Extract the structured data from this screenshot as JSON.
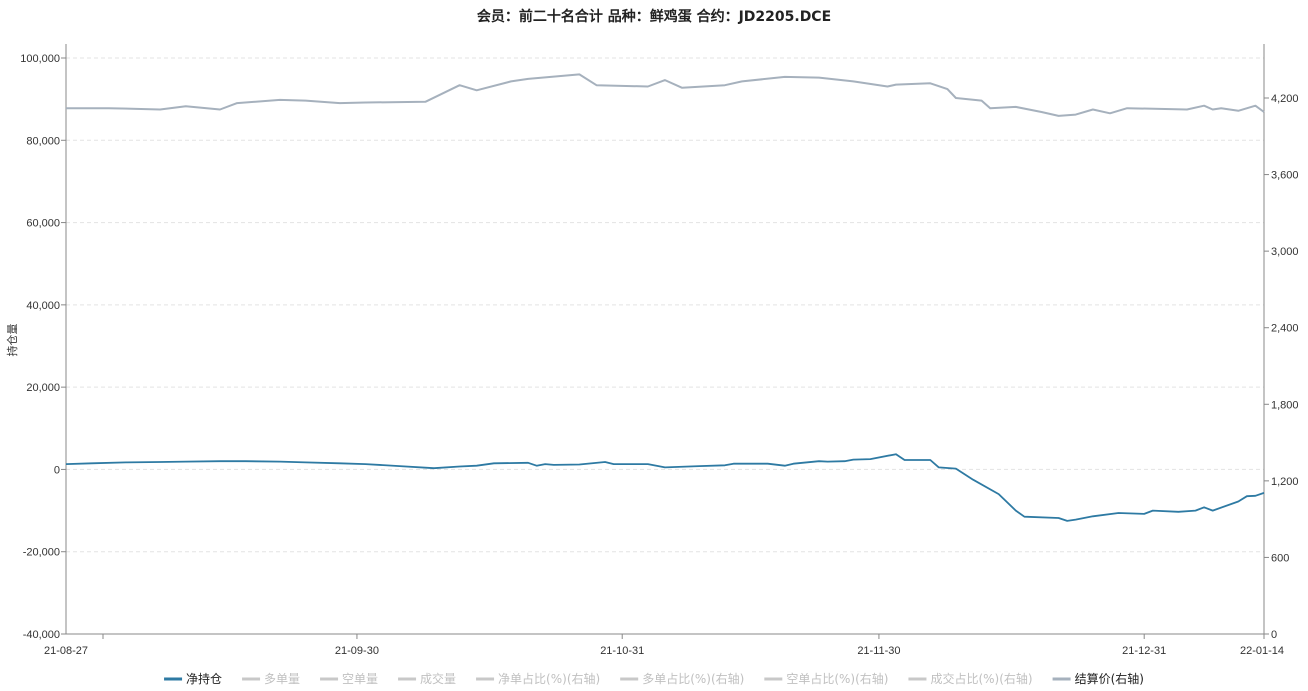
{
  "chart_data": {
    "type": "line",
    "title": "会员：前二十名合计 品种：鲜鸡蛋 合约：JD2205.DCE",
    "ylabel": "持仓量",
    "ylim_left": [
      -40000,
      100000
    ],
    "yticks_left": [
      "-40,000",
      "-20,000",
      "0",
      "20,000",
      "40,000",
      "60,000",
      "80,000",
      "100,000"
    ],
    "yticks_left_values": [
      -40000,
      -20000,
      0,
      20000,
      40000,
      60000,
      80000,
      100000
    ],
    "ylim_right": [
      0,
      4800
    ],
    "yticks_right": [
      "0",
      "600",
      "1,200",
      "1,800",
      "2,400",
      "3,000",
      "3,600",
      "4,200"
    ],
    "yticks_right_values": [
      0,
      600,
      1200,
      1800,
      2400,
      3000,
      3600,
      4200
    ],
    "x_range": [
      "2021-08-27",
      "2022-01-14"
    ],
    "xticks": [
      {
        "date": "2021-08-27",
        "label": "21-08-27"
      },
      {
        "date": "2021-09-30",
        "label": "21-09-30"
      },
      {
        "date": "2021-10-31",
        "label": "21-10-31"
      },
      {
        "date": "2021-11-30",
        "label": "21-11-30"
      },
      {
        "date": "2021-12-31",
        "label": "21-12-31"
      },
      {
        "date": "2022-01-14",
        "label": "22-01-14"
      }
    ],
    "grid": true,
    "legend_position": "bottom",
    "series": [
      {
        "name": "净持仓",
        "axis": "left",
        "visible": true,
        "color": "#2e7aa3",
        "points": [
          [
            "2021-08-27",
            1300
          ],
          [
            "2021-08-30",
            1500
          ],
          [
            "2021-09-03",
            1700
          ],
          [
            "2021-09-07",
            1800
          ],
          [
            "2021-09-10",
            1900
          ],
          [
            "2021-09-14",
            2000
          ],
          [
            "2021-09-17",
            2000
          ],
          [
            "2021-09-21",
            1900
          ],
          [
            "2021-09-24",
            1700
          ],
          [
            "2021-09-28",
            1500
          ],
          [
            "2021-10-01",
            1300
          ],
          [
            "2021-10-05",
            800
          ],
          [
            "2021-10-09",
            300
          ],
          [
            "2021-10-12",
            700
          ],
          [
            "2021-10-14",
            900
          ],
          [
            "2021-10-16",
            1500
          ],
          [
            "2021-10-20",
            1600
          ],
          [
            "2021-10-21",
            900
          ],
          [
            "2021-10-22",
            1300
          ],
          [
            "2021-10-23",
            1100
          ],
          [
            "2021-10-26",
            1200
          ],
          [
            "2021-10-29",
            1800
          ],
          [
            "2021-10-30",
            1300
          ],
          [
            "2021-11-03",
            1300
          ],
          [
            "2021-11-05",
            500
          ],
          [
            "2021-11-09",
            800
          ],
          [
            "2021-11-12",
            1000
          ],
          [
            "2021-11-13",
            1400
          ],
          [
            "2021-11-17",
            1400
          ],
          [
            "2021-11-19",
            900
          ],
          [
            "2021-11-20",
            1400
          ],
          [
            "2021-11-23",
            2000
          ],
          [
            "2021-11-24",
            1900
          ],
          [
            "2021-11-26",
            2000
          ],
          [
            "2021-11-27",
            2400
          ],
          [
            "2021-11-29",
            2500
          ],
          [
            "2021-12-02",
            3700
          ],
          [
            "2021-12-03",
            2300
          ],
          [
            "2021-12-06",
            2300
          ],
          [
            "2021-12-07",
            500
          ],
          [
            "2021-12-09",
            200
          ],
          [
            "2021-12-11",
            -2500
          ],
          [
            "2021-12-14",
            -6000
          ],
          [
            "2021-12-16",
            -10000
          ],
          [
            "2021-12-17",
            -11500
          ],
          [
            "2021-12-21",
            -11800
          ],
          [
            "2021-12-22",
            -12500
          ],
          [
            "2021-12-23",
            -12200
          ],
          [
            "2021-12-25",
            -11400
          ],
          [
            "2021-12-28",
            -10600
          ],
          [
            "2021-12-31",
            -10800
          ],
          [
            "2022-01-01",
            -10000
          ],
          [
            "2022-01-04",
            -10300
          ],
          [
            "2022-01-06",
            -10000
          ],
          [
            "2022-01-07",
            -9200
          ],
          [
            "2022-01-08",
            -10000
          ],
          [
            "2022-01-11",
            -7800
          ],
          [
            "2022-01-12",
            -6500
          ],
          [
            "2022-01-13",
            -6400
          ],
          [
            "2022-01-14",
            -5700
          ]
        ]
      },
      {
        "name": "结算价(右轴)",
        "axis": "right",
        "visible": true,
        "color": "#a6b1bd",
        "points": [
          [
            "2021-08-27",
            4120
          ],
          [
            "2021-09-01",
            4120
          ],
          [
            "2021-09-07",
            4110
          ],
          [
            "2021-09-10",
            4135
          ],
          [
            "2021-09-14",
            4110
          ],
          [
            "2021-09-16",
            4160
          ],
          [
            "2021-09-21",
            4185
          ],
          [
            "2021-09-24",
            4180
          ],
          [
            "2021-09-28",
            4160
          ],
          [
            "2021-10-01",
            4165
          ],
          [
            "2021-10-08",
            4170
          ],
          [
            "2021-10-12",
            4300
          ],
          [
            "2021-10-14",
            4260
          ],
          [
            "2021-10-18",
            4330
          ],
          [
            "2021-10-20",
            4350
          ],
          [
            "2021-10-26",
            4385
          ],
          [
            "2021-10-28",
            4300
          ],
          [
            "2021-11-03",
            4290
          ],
          [
            "2021-11-05",
            4340
          ],
          [
            "2021-11-07",
            4280
          ],
          [
            "2021-11-12",
            4300
          ],
          [
            "2021-11-14",
            4330
          ],
          [
            "2021-11-19",
            4365
          ],
          [
            "2021-11-23",
            4360
          ],
          [
            "2021-11-27",
            4330
          ],
          [
            "2021-12-01",
            4290
          ],
          [
            "2021-12-02",
            4305
          ],
          [
            "2021-12-06",
            4315
          ],
          [
            "2021-12-08",
            4270
          ],
          [
            "2021-12-09",
            4200
          ],
          [
            "2021-12-12",
            4180
          ],
          [
            "2021-12-13",
            4120
          ],
          [
            "2021-12-16",
            4130
          ],
          [
            "2021-12-19",
            4090
          ],
          [
            "2021-12-21",
            4060
          ],
          [
            "2021-12-23",
            4070
          ],
          [
            "2021-12-25",
            4110
          ],
          [
            "2021-12-27",
            4080
          ],
          [
            "2021-12-29",
            4120
          ],
          [
            "2022-01-05",
            4110
          ],
          [
            "2022-01-07",
            4140
          ],
          [
            "2022-01-08",
            4110
          ],
          [
            "2022-01-09",
            4120
          ],
          [
            "2022-01-11",
            4100
          ],
          [
            "2022-01-13",
            4140
          ],
          [
            "2022-01-14",
            4090
          ]
        ]
      },
      {
        "name": "多单量",
        "axis": "left",
        "visible": false,
        "color": "#c8c8c8"
      },
      {
        "name": "空单量",
        "axis": "left",
        "visible": false,
        "color": "#c8c8c8"
      },
      {
        "name": "成交量",
        "axis": "left",
        "visible": false,
        "color": "#c8c8c8"
      },
      {
        "name": "净单占比(%)(右轴)",
        "axis": "right",
        "visible": false,
        "color": "#c8c8c8"
      },
      {
        "name": "多单占比(%)(右轴)",
        "axis": "right",
        "visible": false,
        "color": "#c8c8c8"
      },
      {
        "name": "空单占比(%)(右轴)",
        "axis": "right",
        "visible": false,
        "color": "#c8c8c8"
      },
      {
        "name": "成交占比(%)(右轴)",
        "axis": "right",
        "visible": false,
        "color": "#c8c8c8"
      }
    ],
    "legend": [
      {
        "name": "净持仓",
        "color": "#2e7aa3",
        "active": true
      },
      {
        "name": "多单量",
        "color": "#c8c8c8",
        "active": false
      },
      {
        "name": "空单量",
        "color": "#c8c8c8",
        "active": false
      },
      {
        "name": "成交量",
        "color": "#c8c8c8",
        "active": false
      },
      {
        "name": "净单占比(%)(右轴)",
        "color": "#c8c8c8",
        "active": false
      },
      {
        "name": "多单占比(%)(右轴)",
        "color": "#c8c8c8",
        "active": false
      },
      {
        "name": "空单占比(%)(右轴)",
        "color": "#c8c8c8",
        "active": false
      },
      {
        "name": "成交占比(%)(右轴)",
        "color": "#c8c8c8",
        "active": false
      },
      {
        "name": "结算价(右轴)",
        "color": "#a6b1bd",
        "active": true
      }
    ]
  }
}
